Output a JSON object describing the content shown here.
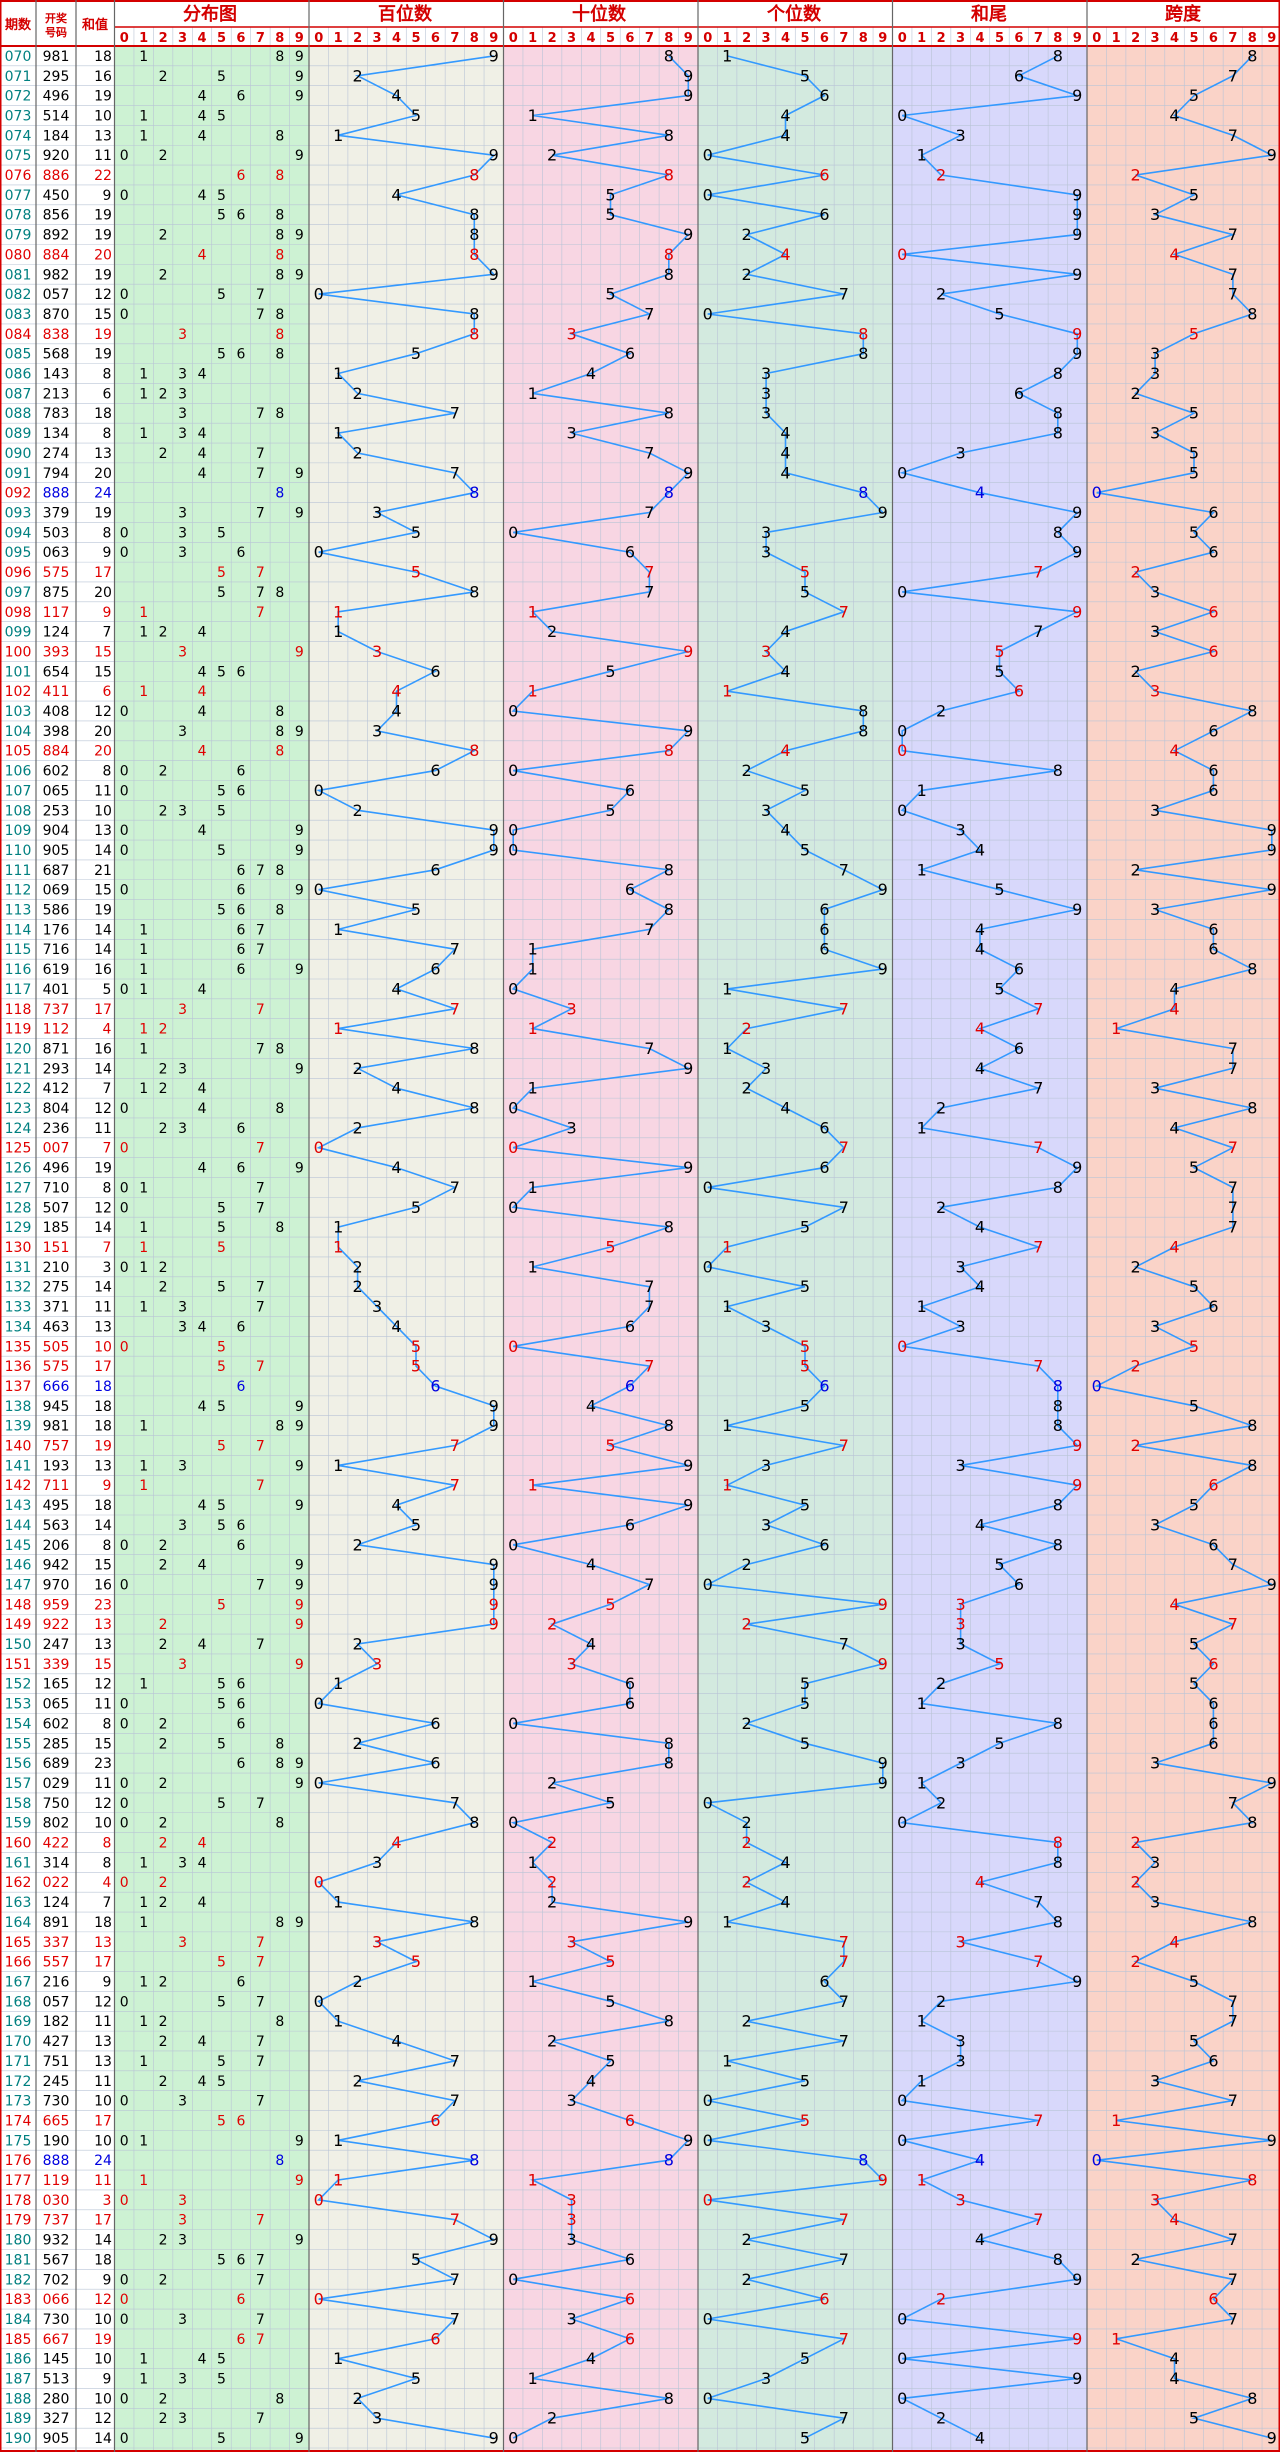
{
  "headers": {
    "issue": "期数",
    "draw_a": "开奖",
    "draw_b": "号码",
    "sum": "和值",
    "dist": "分布图",
    "hundreds": "百位数",
    "tens": "十位数",
    "units": "个位数",
    "sum_tail": "和尾",
    "span": "跨度"
  },
  "colors": {
    "frame": "#d40000",
    "header_text": "#d40000",
    "issue_text": "#008080",
    "normal_text": "#000000",
    "special_red": "#e00000",
    "special_blue": "#0000e0",
    "line": "#3399ff",
    "bg_dist": "#cdf2d3",
    "bg_hundreds": "#f0f0e6",
    "bg_tens": "#f8d6e3",
    "bg_units": "#d3eadf",
    "bg_tail": "#d8d8fb",
    "bg_span": "#fad3c8",
    "grid": "#b9c4d6"
  },
  "chart_data": {
    "type": "table",
    "digits": [
      "0",
      "1",
      "2",
      "3",
      "4",
      "5",
      "6",
      "7",
      "8",
      "9"
    ],
    "rows": [
      [
        "070",
        "981",
        0
      ],
      [
        "071",
        "295",
        0
      ],
      [
        "072",
        "496",
        0
      ],
      [
        "073",
        "514",
        0
      ],
      [
        "074",
        "184",
        0
      ],
      [
        "075",
        "920",
        0
      ],
      [
        "076",
        "886",
        1
      ],
      [
        "077",
        "450",
        0
      ],
      [
        "078",
        "856",
        0
      ],
      [
        "079",
        "892",
        0
      ],
      [
        "080",
        "884",
        1
      ],
      [
        "081",
        "982",
        0
      ],
      [
        "082",
        "057",
        0
      ],
      [
        "083",
        "870",
        0
      ],
      [
        "084",
        "838",
        1
      ],
      [
        "085",
        "568",
        0
      ],
      [
        "086",
        "143",
        0
      ],
      [
        "087",
        "213",
        0
      ],
      [
        "088",
        "783",
        0
      ],
      [
        "089",
        "134",
        0
      ],
      [
        "090",
        "274",
        0
      ],
      [
        "091",
        "794",
        0
      ],
      [
        "092",
        "888",
        2
      ],
      [
        "093",
        "379",
        0
      ],
      [
        "094",
        "503",
        0
      ],
      [
        "095",
        "063",
        0
      ],
      [
        "096",
        "575",
        1
      ],
      [
        "097",
        "875",
        0
      ],
      [
        "098",
        "117",
        1
      ],
      [
        "099",
        "124",
        0
      ],
      [
        "100",
        "393",
        1
      ],
      [
        "101",
        "654",
        0
      ],
      [
        "102",
        "411",
        1
      ],
      [
        "103",
        "408",
        0
      ],
      [
        "104",
        "398",
        0
      ],
      [
        "105",
        "884",
        1
      ],
      [
        "106",
        "602",
        0
      ],
      [
        "107",
        "065",
        0
      ],
      [
        "108",
        "253",
        0
      ],
      [
        "109",
        "904",
        0
      ],
      [
        "110",
        "905",
        0
      ],
      [
        "111",
        "687",
        0
      ],
      [
        "112",
        "069",
        0
      ],
      [
        "113",
        "586",
        0
      ],
      [
        "114",
        "176",
        0
      ],
      [
        "115",
        "716",
        0
      ],
      [
        "116",
        "619",
        0
      ],
      [
        "117",
        "401",
        0
      ],
      [
        "118",
        "737",
        1
      ],
      [
        "119",
        "112",
        1
      ],
      [
        "120",
        "871",
        0
      ],
      [
        "121",
        "293",
        0
      ],
      [
        "122",
        "412",
        0
      ],
      [
        "123",
        "804",
        0
      ],
      [
        "124",
        "236",
        0
      ],
      [
        "125",
        "007",
        1
      ],
      [
        "126",
        "496",
        0
      ],
      [
        "127",
        "710",
        0
      ],
      [
        "128",
        "507",
        0
      ],
      [
        "129",
        "185",
        0
      ],
      [
        "130",
        "151",
        1
      ],
      [
        "131",
        "210",
        0
      ],
      [
        "132",
        "275",
        0
      ],
      [
        "133",
        "371",
        0
      ],
      [
        "134",
        "463",
        0
      ],
      [
        "135",
        "505",
        1
      ],
      [
        "136",
        "575",
        1
      ],
      [
        "137",
        "666",
        2
      ],
      [
        "138",
        "945",
        0
      ],
      [
        "139",
        "981",
        0
      ],
      [
        "140",
        "757",
        1
      ],
      [
        "141",
        "193",
        0
      ],
      [
        "142",
        "711",
        1
      ],
      [
        "143",
        "495",
        0
      ],
      [
        "144",
        "563",
        0
      ],
      [
        "145",
        "206",
        0
      ],
      [
        "146",
        "942",
        0
      ],
      [
        "147",
        "970",
        0
      ],
      [
        "148",
        "959",
        1
      ],
      [
        "149",
        "922",
        1
      ],
      [
        "150",
        "247",
        0
      ],
      [
        "151",
        "339",
        1
      ],
      [
        "152",
        "165",
        0
      ],
      [
        "153",
        "065",
        0
      ],
      [
        "154",
        "602",
        0
      ],
      [
        "155",
        "285",
        0
      ],
      [
        "156",
        "689",
        0
      ],
      [
        "157",
        "029",
        0
      ],
      [
        "158",
        "750",
        0
      ],
      [
        "159",
        "802",
        0
      ],
      [
        "160",
        "422",
        1
      ],
      [
        "161",
        "314",
        0
      ],
      [
        "162",
        "022",
        1
      ],
      [
        "163",
        "124",
        0
      ],
      [
        "164",
        "891",
        0
      ],
      [
        "165",
        "337",
        1
      ],
      [
        "166",
        "557",
        1
      ],
      [
        "167",
        "216",
        0
      ],
      [
        "168",
        "057",
        0
      ],
      [
        "169",
        "182",
        0
      ],
      [
        "170",
        "427",
        0
      ],
      [
        "171",
        "751",
        0
      ],
      [
        "172",
        "245",
        0
      ],
      [
        "173",
        "730",
        0
      ],
      [
        "174",
        "665",
        1
      ],
      [
        "175",
        "190",
        0
      ],
      [
        "176",
        "888",
        2
      ],
      [
        "177",
        "119",
        1
      ],
      [
        "178",
        "030",
        1
      ],
      [
        "179",
        "737",
        1
      ],
      [
        "180",
        "932",
        0
      ],
      [
        "181",
        "567",
        0
      ],
      [
        "182",
        "702",
        0
      ],
      [
        "183",
        "066",
        1
      ],
      [
        "184",
        "730",
        0
      ],
      [
        "185",
        "667",
        1
      ],
      [
        "186",
        "145",
        0
      ],
      [
        "187",
        "513",
        0
      ],
      [
        "188",
        "280",
        0
      ],
      [
        "189",
        "327",
        0
      ],
      [
        "190",
        "905",
        0
      ]
    ]
  }
}
